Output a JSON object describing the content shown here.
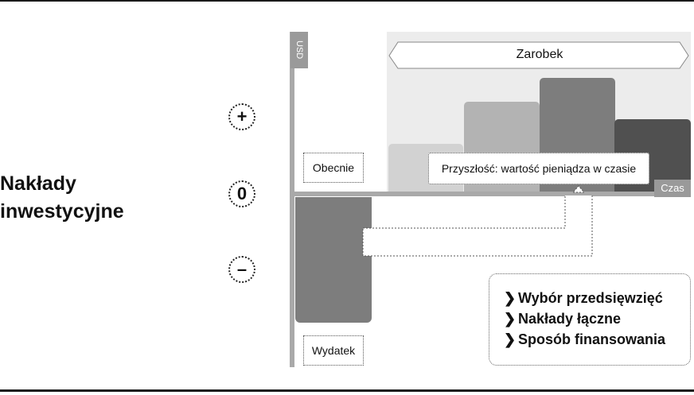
{
  "title_lines": [
    "Nakłady",
    "inwestycyjne"
  ],
  "signs": {
    "plus": "+",
    "zero": "0",
    "minus": "–"
  },
  "axis": {
    "y_label": "USD",
    "x_label": "Czas"
  },
  "labels": {
    "profit": "Zarobek",
    "current": "Obecnie",
    "future": "Przyszłość: wartość pieniądza w czasie",
    "expense": "Wydatek"
  },
  "list_items": [
    "Wybór przedsięwzięć",
    "Nakłady łączne",
    "Sposób finansowania"
  ],
  "colors": {
    "bar1": "#d2d2d2",
    "bar2": "#b3b3b3",
    "bar3": "#7d7d7d",
    "bar4": "#505050",
    "expense": "#7d7d7d",
    "axis": "#a9a9a9"
  }
}
